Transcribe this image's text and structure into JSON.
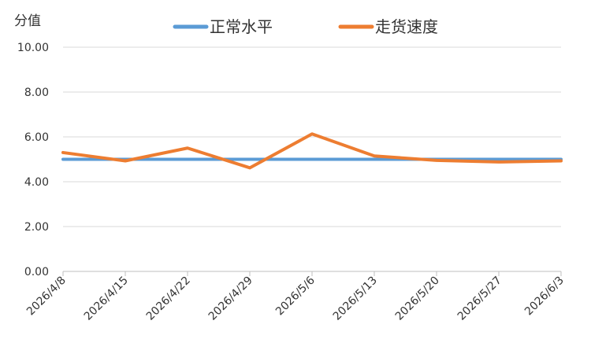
{
  "chart_data": {
    "type": "line",
    "ylabel": "分值",
    "ylim": [
      0,
      10
    ],
    "yticks": [
      "0.00",
      "2.00",
      "4.00",
      "6.00",
      "8.00",
      "10.00"
    ],
    "categories": [
      "2026/4/8",
      "2026/4/15",
      "2026/4/22",
      "2026/4/29",
      "2026/5/6",
      "2026/5/13",
      "2026/5/20",
      "2026/5/27",
      "2026/6/3"
    ],
    "series": [
      {
        "name": "正常水平",
        "color": "#5B9BD5",
        "values": [
          5.0,
          5.0,
          5.0,
          5.0,
          5.0,
          5.0,
          5.0,
          5.0,
          5.0
        ]
      },
      {
        "name": "走货速度",
        "color": "#ED7D31",
        "values": [
          5.3,
          4.93,
          5.5,
          4.62,
          6.13,
          5.15,
          4.95,
          4.88,
          4.93
        ]
      }
    ],
    "legend": "top",
    "grid": "horizontal"
  }
}
